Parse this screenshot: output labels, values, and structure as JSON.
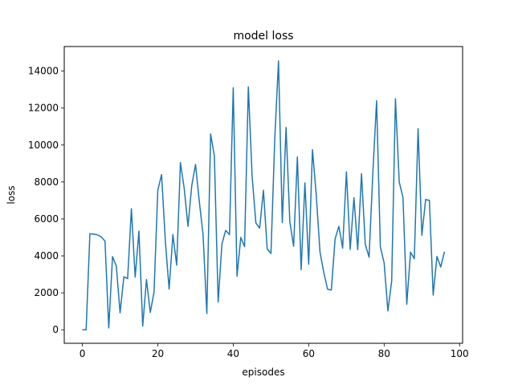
{
  "chart_data": {
    "type": "line",
    "title": "model loss",
    "xlabel": "episodes",
    "ylabel": "loss",
    "xlim": [
      -4.8,
      100.8
    ],
    "ylim": [
      -730,
      15330
    ],
    "xticks": [
      0,
      20,
      40,
      60,
      80,
      100
    ],
    "yticks": [
      0,
      2000,
      4000,
      6000,
      8000,
      10000,
      12000,
      14000
    ],
    "grid": false,
    "line_color": "#1f77b4",
    "series": [
      {
        "x": [
          0,
          1,
          2,
          3,
          4,
          5,
          6,
          7,
          8,
          9,
          10,
          11,
          12,
          13,
          14,
          15,
          16,
          17,
          18,
          19,
          20,
          21,
          22,
          23,
          24,
          25,
          26,
          27,
          28,
          29,
          30,
          31,
          32,
          33,
          34,
          35,
          36,
          37,
          38,
          39,
          40,
          41,
          42,
          43,
          44,
          45,
          46,
          47,
          48,
          49,
          50,
          51,
          52,
          53,
          54,
          55,
          56,
          57,
          58,
          59,
          60,
          61,
          62,
          63,
          64,
          65,
          66,
          67,
          68,
          69,
          70,
          71,
          72,
          73,
          74,
          75,
          76,
          77,
          78,
          79,
          80,
          81,
          82,
          83,
          84,
          85,
          86,
          87,
          88,
          89,
          90,
          91,
          92,
          93,
          94,
          95,
          96
        ],
        "values": [
          0,
          0,
          5200,
          5180,
          5140,
          5030,
          4800,
          100,
          3960,
          3450,
          920,
          2870,
          2770,
          6550,
          2850,
          5340,
          200,
          2720,
          940,
          2040,
          7550,
          8400,
          4800,
          2200,
          5150,
          3500,
          9050,
          7650,
          5600,
          7800,
          8950,
          6950,
          5150,
          880,
          10600,
          9400,
          1500,
          4650,
          5380,
          5150,
          13100,
          2900,
          5000,
          4500,
          13150,
          8300,
          5780,
          5500,
          7550,
          4380,
          4130,
          10300,
          14550,
          5800,
          10950,
          5850,
          4520,
          9350,
          3250,
          7950,
          3550,
          9750,
          7300,
          4200,
          3100,
          2200,
          2150,
          4920,
          5600,
          4420,
          8550,
          4350,
          7150,
          4330,
          8450,
          4630,
          3930,
          8450,
          12400,
          4480,
          3620,
          1020,
          2640,
          12500,
          8000,
          7150,
          1380,
          4200,
          3850,
          10880,
          5110,
          7050,
          7000,
          1880,
          3970,
          3400,
          4230
        ]
      }
    ]
  }
}
